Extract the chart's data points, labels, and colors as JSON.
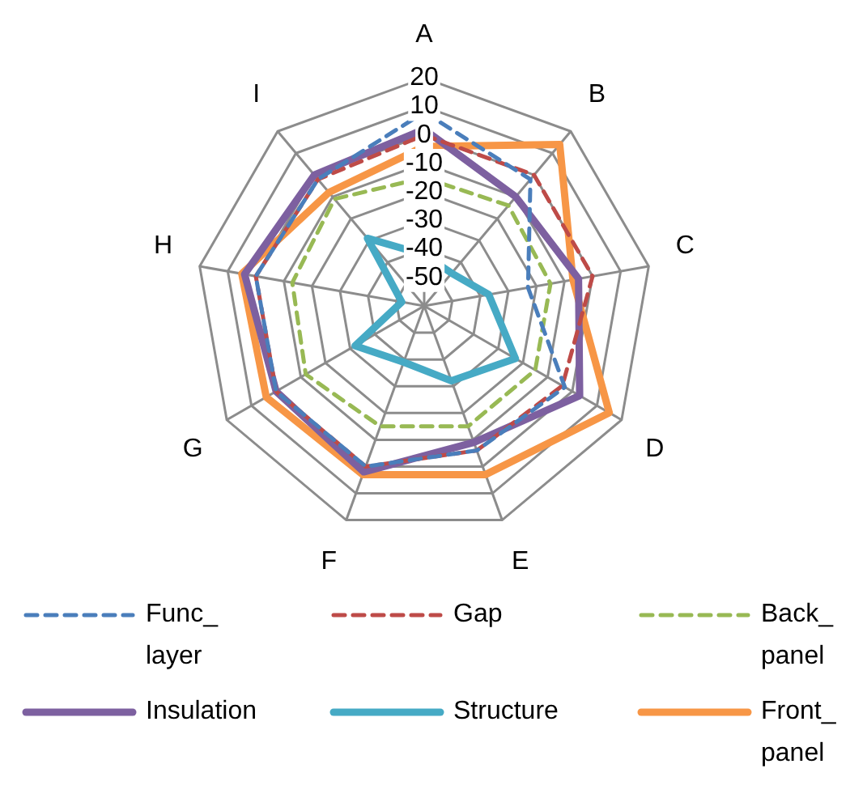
{
  "chart_data": {
    "type": "radar",
    "categories": [
      "A",
      "B",
      "C",
      "D",
      "E",
      "F",
      "G",
      "H",
      "I"
    ],
    "ylim": [
      -60,
      20
    ],
    "yticks": [
      -50,
      -40,
      -30,
      -20,
      -10,
      0,
      10,
      20
    ],
    "grid": true,
    "legend": "bottom",
    "series": [
      {
        "name": "Func_ layer",
        "color": "#4a7ebb",
        "line_style": "dashed",
        "values": [
          8,
          -2,
          -23,
          -3,
          -6,
          0,
          0,
          0,
          -2
        ]
      },
      {
        "name": "Gap",
        "color": "#be4b48",
        "line_style": "dashed",
        "values": [
          0,
          0,
          0,
          -4,
          -6,
          0,
          0,
          0,
          -2
        ]
      },
      {
        "name": "Back_ panel",
        "color": "#98b954",
        "line_style": "dashed",
        "values": [
          -15,
          -14,
          -15,
          -15,
          -15,
          -15,
          -12,
          -13,
          -11
        ]
      },
      {
        "name": "Insulation",
        "color": "#7d60a0",
        "line_style": "solid",
        "values": [
          2,
          -10,
          -5,
          3,
          -9,
          2,
          0,
          4,
          0
        ]
      },
      {
        "name": "Structure",
        "color": "#46aac5",
        "line_style": "solid",
        "values": [
          -42,
          -45,
          -37,
          -23,
          -32,
          -39,
          -32,
          -52,
          -29
        ]
      },
      {
        "name": "Front_ panel",
        "color": "#f79646",
        "line_style": "solid",
        "values": [
          -4,
          14,
          -7,
          15,
          3,
          3,
          4,
          5,
          -8
        ]
      }
    ]
  }
}
